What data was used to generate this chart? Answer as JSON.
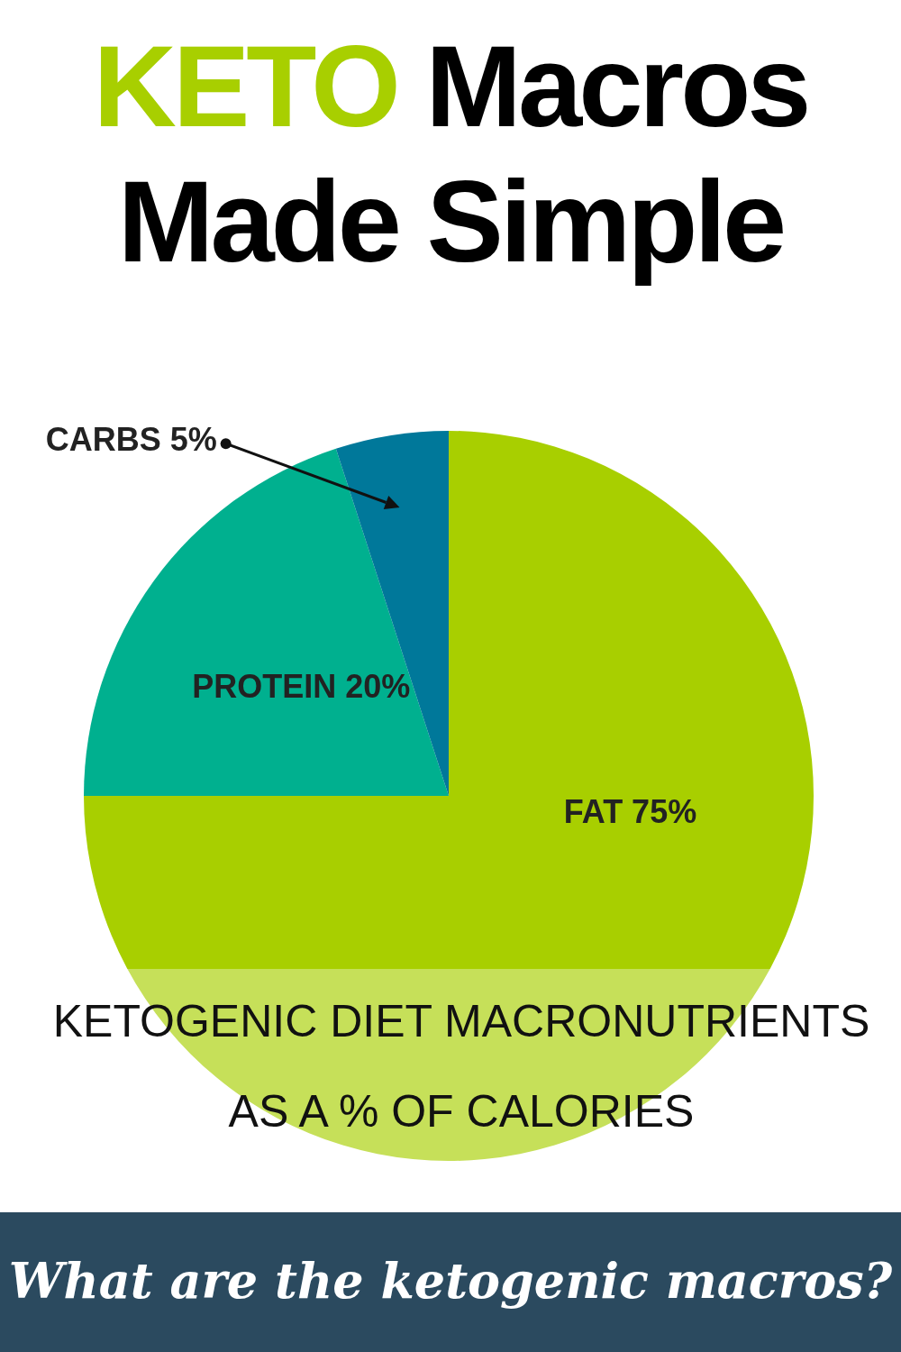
{
  "chart_data": {
    "type": "pie",
    "title": "KETO Macros Made Simple",
    "categories": [
      "FAT",
      "PROTEIN",
      "CARBS"
    ],
    "values": [
      75,
      20,
      5
    ],
    "value_labels": [
      "75%",
      "20%",
      "5%"
    ],
    "colors": [
      "#a8cf00",
      "#00b08f",
      "#00789a"
    ],
    "annotations": [
      "KETOGENIC DIET MACRONUTRIENTS AS A % OF CALORIES",
      "What are the ketogenic macros?"
    ]
  }
}
